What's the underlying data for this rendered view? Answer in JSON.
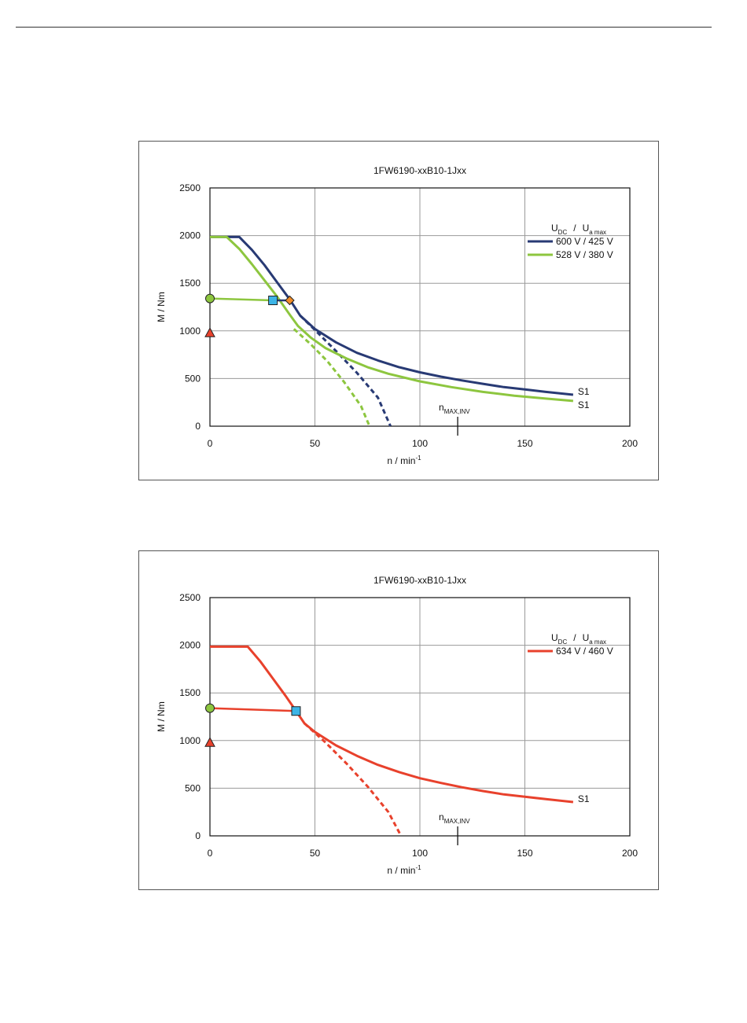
{
  "chart_data": [
    {
      "type": "line",
      "title": "1FW6190-xxB10-1Jxx",
      "xlabel": "n / min",
      "xlabel_sup": "-1",
      "ylabel": "M / Nm",
      "xlim": [
        0,
        200
      ],
      "ylim": [
        0,
        2500
      ],
      "x_ticks": [
        "0",
        "50",
        "100",
        "150",
        "200"
      ],
      "y_ticks": [
        "0",
        "500",
        "1000",
        "1500",
        "2000",
        "2500"
      ],
      "grid": true,
      "legend_header": {
        "u": "U",
        "u_sub": "DC",
        "sep": "/",
        "u2": "U",
        "u2_sub": "a max"
      },
      "legend_position": "top-right",
      "nmax": {
        "x": 118,
        "label": "n",
        "label_sub": "MAX,INV"
      },
      "series": [
        {
          "name": "600 V / 425 V",
          "color": "#283a74",
          "end_label": "S1",
          "solid": [
            [
              0,
              1985
            ],
            [
              14,
              1985
            ],
            [
              20,
              1850
            ],
            [
              26,
              1690
            ],
            [
              32,
              1510
            ],
            [
              38,
              1330
            ],
            [
              43,
              1160
            ],
            [
              50,
              1020
            ],
            [
              60,
              880
            ],
            [
              70,
              770
            ],
            [
              80,
              690
            ],
            [
              90,
              620
            ],
            [
              100,
              565
            ],
            [
              110,
              520
            ],
            [
              120,
              480
            ],
            [
              130,
              445
            ],
            [
              140,
              410
            ],
            [
              150,
              385
            ],
            [
              160,
              360
            ],
            [
              173,
              330
            ]
          ],
          "dashed": [
            [
              43,
              1160
            ],
            [
              50,
              1010
            ],
            [
              60,
              790
            ],
            [
              70,
              560
            ],
            [
              80,
              300
            ],
            [
              86,
              0
            ]
          ]
        },
        {
          "name": "528 V / 380 V",
          "color": "#8dc63f",
          "end_label": "S1",
          "solid": [
            [
              0,
              1985
            ],
            [
              8,
              1985
            ],
            [
              14,
              1860
            ],
            [
              20,
              1700
            ],
            [
              26,
              1530
            ],
            [
              32,
              1360
            ],
            [
              38,
              1170
            ],
            [
              42,
              1050
            ],
            [
              48,
              930
            ],
            [
              55,
              820
            ],
            [
              65,
              710
            ],
            [
              75,
              620
            ],
            [
              85,
              550
            ],
            [
              100,
              470
            ],
            [
              115,
              410
            ],
            [
              130,
              360
            ],
            [
              145,
              320
            ],
            [
              160,
              290
            ],
            [
              173,
              265
            ]
          ],
          "dashed": [
            [
              40,
              1020
            ],
            [
              48,
              860
            ],
            [
              56,
              680
            ],
            [
              64,
              460
            ],
            [
              72,
              210
            ],
            [
              76,
              0
            ]
          ]
        }
      ],
      "markers": [
        {
          "shape": "circle",
          "x": 0,
          "y": 1340,
          "color": "#8dc63f"
        },
        {
          "shape": "triangle",
          "x": 0,
          "y": 980,
          "color": "#e8412c"
        },
        {
          "shape": "square",
          "x": 30,
          "y": 1320,
          "color": "#3cb4e6"
        },
        {
          "shape": "diamond",
          "x": 38,
          "y": 1320,
          "color": "#f08c28"
        }
      ],
      "extra_lines": [
        {
          "points": [
            [
              0,
              1340
            ],
            [
              30,
              1320
            ]
          ],
          "color": "#8dc63f"
        },
        {
          "points": [
            [
              30,
              1320
            ],
            [
              38,
              1320
            ]
          ],
          "color": "#283a74"
        }
      ]
    },
    {
      "type": "line",
      "title": "1FW6190-xxB10-1Jxx",
      "xlabel": "n / min",
      "xlabel_sup": "-1",
      "ylabel": "M / Nm",
      "xlim": [
        0,
        200
      ],
      "ylim": [
        0,
        2500
      ],
      "x_ticks": [
        "0",
        "50",
        "100",
        "150",
        "200"
      ],
      "y_ticks": [
        "0",
        "500",
        "1000",
        "1500",
        "2000",
        "2500"
      ],
      "grid": true,
      "legend_header": {
        "u": "U",
        "u_sub": "DC",
        "sep": "/",
        "u2": "U",
        "u2_sub": "a max"
      },
      "legend_position": "top-right",
      "nmax": {
        "x": 118,
        "label": "n",
        "label_sub": "MAX,INV"
      },
      "series": [
        {
          "name": "634 V / 460 V",
          "color": "#e8412c",
          "end_label": "S1",
          "solid": [
            [
              0,
              1985
            ],
            [
              18,
              1985
            ],
            [
              24,
              1830
            ],
            [
              30,
              1650
            ],
            [
              36,
              1470
            ],
            [
              41,
              1310
            ],
            [
              45,
              1180
            ],
            [
              50,
              1090
            ],
            [
              60,
              950
            ],
            [
              70,
              840
            ],
            [
              80,
              745
            ],
            [
              90,
              670
            ],
            [
              100,
              605
            ],
            [
              110,
              555
            ],
            [
              120,
              510
            ],
            [
              130,
              470
            ],
            [
              140,
              435
            ],
            [
              150,
              410
            ],
            [
              160,
              385
            ],
            [
              173,
              355
            ]
          ],
          "dashed": [
            [
              45,
              1180
            ],
            [
              55,
              980
            ],
            [
              65,
              760
            ],
            [
              75,
              520
            ],
            [
              85,
              250
            ],
            [
              91,
              0
            ]
          ]
        }
      ],
      "markers": [
        {
          "shape": "circle",
          "x": 0,
          "y": 1340,
          "color": "#8dc63f"
        },
        {
          "shape": "triangle",
          "x": 0,
          "y": 980,
          "color": "#e8412c"
        },
        {
          "shape": "square",
          "x": 41,
          "y": 1310,
          "color": "#3cb4e6"
        }
      ],
      "extra_lines": [
        {
          "points": [
            [
              0,
              1340
            ],
            [
              41,
              1310
            ]
          ],
          "color": "#e8412c"
        }
      ]
    }
  ]
}
